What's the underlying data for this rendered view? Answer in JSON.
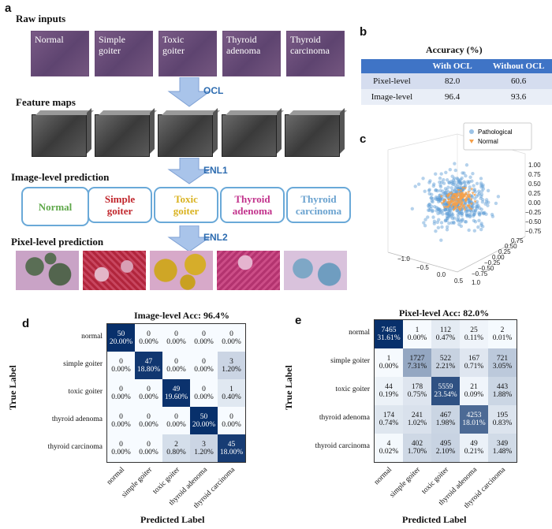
{
  "panels": {
    "a": "a",
    "b": "b",
    "c": "c",
    "d": "d",
    "e": "e"
  },
  "panel_a": {
    "raw_title": "Raw inputs",
    "raw_tiles": [
      "Normal",
      "Simple goiter",
      "Toxic goiter",
      "Thyroid adenoma",
      "Thyroid carcinoma"
    ],
    "ocl": "OCL",
    "feature_title": "Feature maps",
    "image_title": "Image-level prediction",
    "enl1": "ENL1",
    "pred_boxes": [
      {
        "label": "Normal",
        "color": "#5fa84a"
      },
      {
        "label": "Simple goiter",
        "color": "#c1272d"
      },
      {
        "label": "Toxic goiter",
        "color": "#d9b21f"
      },
      {
        "label": "Thyroid adenoma",
        "color": "#c2338c"
      },
      {
        "label": "Thyroid carcinoma",
        "color": "#6aa2cf"
      }
    ],
    "pixel_title": "Pixel-level prediction",
    "enl2": "ENL2"
  },
  "panel_b": {
    "title": "Accuracy (%)",
    "headers": [
      "",
      "With OCL",
      "Without OCL"
    ],
    "rows": [
      [
        "Pixel-level",
        "82.0",
        "60.6"
      ],
      [
        "Image-level",
        "96.4",
        "93.6"
      ]
    ]
  },
  "panel_c": {
    "legend": [
      {
        "name": "Pathological",
        "color": "#5b9bd5"
      },
      {
        "name": "Normal",
        "color": "#f5a04a"
      }
    ],
    "y_ticks": [
      "1.00",
      "0.75",
      "0.50",
      "0.25",
      "0.00",
      "−0.25",
      "−0.50",
      "−0.75"
    ],
    "x_ticks": [
      "−1.0",
      "−0.5",
      "0.0",
      "0.5",
      "1.0"
    ],
    "z_ticks": [
      "0.75",
      "0.50",
      "0.25",
      "0.00",
      "−0.25",
      "−0.50",
      "−0.75"
    ]
  },
  "chart_data": [
    {
      "type": "heatmap",
      "title": "Image-level Acc: 96.4%",
      "xlabel": "Predicted Label",
      "ylabel": "True Label",
      "labels": [
        "normal",
        "simple goiter",
        "toxic goiter",
        "thyroid adenoma",
        "thyroid carcinoma"
      ],
      "counts": [
        [
          50,
          0,
          0,
          0,
          0
        ],
        [
          0,
          47,
          0,
          0,
          3
        ],
        [
          0,
          0,
          49,
          0,
          1
        ],
        [
          0,
          0,
          0,
          50,
          0
        ],
        [
          0,
          0,
          2,
          3,
          45
        ]
      ],
      "percents": [
        [
          "20.00%",
          "0.00%",
          "0.00%",
          "0.00%",
          "0.00%"
        ],
        [
          "0.00%",
          "18.80%",
          "0.00%",
          "0.00%",
          "1.20%"
        ],
        [
          "0.00%",
          "0.00%",
          "19.60%",
          "0.00%",
          "0.40%"
        ],
        [
          "0.00%",
          "0.00%",
          "0.00%",
          "20.00%",
          "0.00%"
        ],
        [
          "0.00%",
          "0.00%",
          "0.80%",
          "1.20%",
          "18.00%"
        ]
      ]
    },
    {
      "type": "heatmap",
      "title": "Pixel-level Acc: 82.0%",
      "xlabel": "Predicted Label",
      "ylabel": "True Label",
      "labels": [
        "normal",
        "simple goiter",
        "toxic goiter",
        "thyroid adenoma",
        "thyroid carcinoma"
      ],
      "counts": [
        [
          7465,
          1,
          112,
          25,
          2
        ],
        [
          1,
          1727,
          522,
          167,
          721
        ],
        [
          44,
          178,
          5559,
          21,
          443
        ],
        [
          174,
          241,
          467,
          4253,
          195
        ],
        [
          4,
          402,
          495,
          49,
          349
        ]
      ],
      "percents": [
        [
          "31.61%",
          "0.00%",
          "0.47%",
          "0.11%",
          "0.01%"
        ],
        [
          "0.00%",
          "7.31%",
          "2.21%",
          "0.71%",
          "3.05%"
        ],
        [
          "0.19%",
          "0.75%",
          "23.54%",
          "0.09%",
          "1.88%"
        ],
        [
          "0.74%",
          "1.02%",
          "1.98%",
          "18.01%",
          "0.83%"
        ],
        [
          "0.02%",
          "1.70%",
          "2.10%",
          "0.21%",
          "1.48%"
        ]
      ]
    }
  ]
}
